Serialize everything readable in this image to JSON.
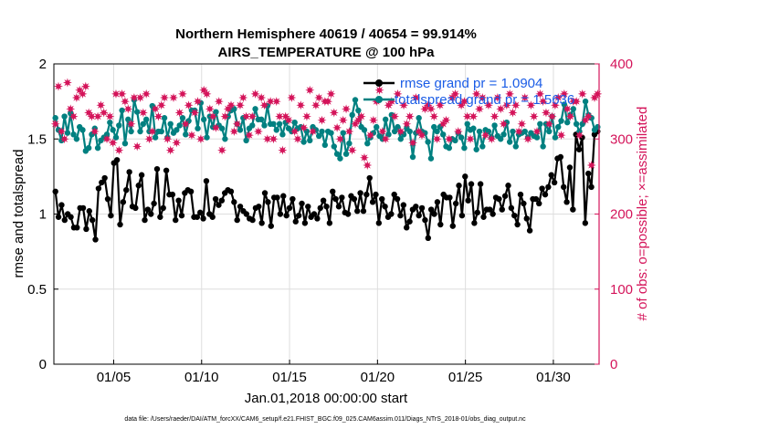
{
  "chart_data": {
    "type": "line",
    "title_line1": "Northern Hemisphere 40619 / 40654 = 99.914%",
    "title_line2": "AIRS_TEMPERATURE @ 100 hPa",
    "ylabel_left": "rmse and totalspread",
    "ylabel_right": "# of obs: o=possible; ×=assimilated",
    "xlabel": "Jan.01,2018 00:00:00 start",
    "footnote": "data file: /Users/raeder/DAI/ATM_forcXX/CAM6_setup/f.e21.FHIST_BGC.f09_025.CAM6assim.011/Diags_NTrS_2018-01/obs_diag_output.nc",
    "x_unit": "days since Jan.01,2018 00:00",
    "xlim": [
      0.6,
      31.6
    ],
    "ylim_left": [
      0,
      2
    ],
    "ylim_right": [
      0,
      400
    ],
    "left_ticks": [
      "0",
      "0.5",
      "1",
      "1.5",
      "2"
    ],
    "left_tick_values": [
      0,
      0.5,
      1,
      1.5,
      2
    ],
    "right_ticks": [
      "0",
      "100",
      "200",
      "300",
      "400"
    ],
    "right_tick_values": [
      0,
      100,
      200,
      300,
      400
    ],
    "x_ticks": [
      "01/05",
      "01/10",
      "01/15",
      "01/20",
      "01/25",
      "01/30"
    ],
    "x_tick_values": [
      4.0,
      9.0,
      14.0,
      19.0,
      24.0,
      29.0
    ],
    "grid": true,
    "legend_position": "top-right",
    "legend": [
      {
        "name": "rmse grand pr = 1.0904",
        "color": "#000000"
      },
      {
        "name": "totalspread grand pr = 1.5636",
        "color": "#008080"
      }
    ],
    "series": [
      {
        "name": "rmse",
        "axis": "left",
        "color": "#000000",
        "values": [
          1.15,
          0.98,
          1.06,
          0.96,
          1.0,
          0.98,
          0.91,
          0.91,
          1.04,
          1.04,
          0.9,
          1.02,
          0.96,
          0.83,
          1.17,
          1.21,
          1.24,
          1.1,
          0.99,
          1.34,
          1.36,
          0.93,
          1.08,
          1.16,
          1.28,
          1.05,
          1.04,
          1.19,
          1.26,
          0.96,
          1.03,
          1.0,
          1.07,
          1.3,
          0.98,
          1.04,
          1.29,
          1.13,
          1.13,
          0.96,
          1.09,
          0.99,
          1.14,
          1.16,
          1.15,
          0.98,
          0.98,
          1.01,
          0.97,
          1.22,
          1.0,
          0.98,
          1.1,
          1.06,
          1.09,
          1.14,
          1.16,
          1.15,
          1.08,
          0.96,
          1.05,
          1.02,
          1.0,
          0.97,
          0.96,
          1.04,
          1.05,
          0.94,
          1.14,
          1.08,
          0.92,
          1.11,
          1.11,
          1.0,
          1.12,
          0.99,
          1.04,
          1.1,
          0.95,
          0.99,
          1.07,
          0.94,
          1.05,
          0.98,
          1.0,
          0.97,
          1.04,
          1.09,
          1.05,
          0.94,
          1.15,
          1.1,
          1.05,
          1.11,
          1.01,
          1.0,
          1.12,
          1.1,
          1.02,
          1.14,
          1.02,
          1.13,
          1.24,
          1.08,
          1.13,
          0.94,
          1.1,
          1.05,
          0.98,
          1.0,
          1.13,
          1.1,
          0.99,
          1.06,
          0.91,
          0.95,
          1.03,
          1.05,
          0.99,
          1.04,
          0.96,
          0.84,
          1.03,
          1.0,
          1.08,
          0.93,
          1.13,
          1.11,
          1.11,
          0.92,
          1.07,
          1.19,
          0.99,
          1.25,
          1.09,
          1.2,
          0.94,
          1.01,
          1.2,
          0.98,
          1.03,
          1.03,
          1.0,
          1.11,
          1.1,
          1.03,
          1.12,
          1.19,
          1.04,
          0.99,
          0.93,
          1.13,
          1.07,
          0.97,
          0.89,
          1.1,
          1.1,
          1.07,
          1.17,
          1.13,
          1.18,
          1.26,
          1.21,
          1.37,
          1.38,
          1.18,
          1.08,
          1.31,
          1.03,
          1.53,
          1.43,
          1.51,
          0.94,
          1.27,
          1.18,
          1.53,
          1.55
        ]
      },
      {
        "name": "totalspread",
        "axis": "left",
        "color": "#008080",
        "values": [
          1.64,
          1.56,
          1.49,
          1.65,
          1.54,
          1.67,
          1.53,
          1.5,
          1.58,
          1.56,
          1.42,
          1.44,
          1.53,
          1.57,
          1.44,
          1.49,
          1.51,
          1.53,
          1.61,
          1.56,
          1.51,
          1.59,
          1.69,
          1.47,
          1.63,
          1.55,
          1.76,
          1.68,
          1.55,
          1.6,
          1.63,
          1.55,
          1.72,
          1.51,
          1.55,
          1.55,
          1.64,
          1.51,
          1.6,
          1.54,
          1.56,
          1.59,
          1.64,
          1.53,
          1.62,
          1.69,
          1.69,
          1.57,
          1.74,
          1.63,
          1.51,
          1.65,
          1.58,
          1.68,
          1.59,
          1.57,
          1.5,
          1.65,
          1.69,
          1.7,
          1.6,
          1.56,
          1.64,
          1.49,
          1.57,
          1.59,
          1.7,
          1.63,
          1.63,
          1.59,
          1.72,
          1.6,
          1.6,
          1.56,
          1.6,
          1.53,
          1.61,
          1.57,
          1.55,
          1.61,
          1.57,
          1.58,
          1.48,
          1.55,
          1.49,
          1.58,
          1.56,
          1.52,
          1.55,
          1.46,
          1.55,
          1.54,
          1.45,
          1.4,
          1.37,
          1.54,
          1.4,
          1.47,
          1.66,
          1.76,
          1.69,
          1.58,
          1.56,
          1.47,
          1.51,
          1.54,
          1.58,
          1.52,
          1.5,
          1.63,
          1.53,
          1.66,
          1.55,
          1.58,
          1.5,
          1.53,
          1.57,
          1.55,
          1.38,
          1.54,
          1.64,
          1.55,
          1.54,
          1.48,
          1.37,
          1.58,
          1.55,
          1.58,
          1.53,
          1.45,
          1.44,
          1.5,
          1.49,
          1.54,
          1.51,
          1.44,
          1.6,
          1.56,
          1.57,
          1.43,
          1.55,
          1.45,
          1.56,
          1.55,
          1.51,
          1.59,
          1.52,
          1.5,
          1.53,
          1.61,
          1.48,
          1.55,
          1.45,
          1.53,
          1.54,
          1.55,
          1.51,
          1.54,
          1.52,
          1.51,
          1.6,
          1.45,
          1.6,
          1.55,
          1.65,
          1.51,
          1.58,
          1.62,
          1.73,
          1.61,
          1.66,
          1.7,
          1.6,
          1.55,
          1.6,
          1.75,
          1.66,
          1.64,
          1.56,
          1.58
        ]
      },
      {
        "name": "# obs possible / assimilated",
        "axis": "right",
        "color": "#d4145a",
        "marker": "star",
        "values": [
          320,
          370,
          310,
          300,
          375,
          340,
          330,
          355,
          365,
          360,
          370,
          335,
          330,
          310,
          330,
          345,
          335,
          300,
          330,
          295,
          360,
          285,
          360,
          350,
          340,
          320,
          355,
          290,
          355,
          335,
          360,
          300,
          310,
          340,
          330,
          345,
          355,
          300,
          285,
          355,
          295,
          335,
          360,
          320,
          345,
          305,
          335,
          350,
          300,
          365,
          360,
          340,
          330,
          315,
          350,
          285,
          330,
          340,
          345,
          310,
          320,
          345,
          355,
          330,
          305,
          330,
          360,
          310,
          355,
          345,
          300,
          350,
          300,
          350,
          330,
          285,
          330,
          325,
          355,
          310,
          300,
          345,
          315,
          330,
          365,
          310,
          345,
          355,
          325,
          350,
          350,
          360,
          335,
          315,
          300,
          325,
          340,
          310,
          285,
          320,
          325,
          330,
          275,
          265,
          305,
          325,
          350,
          365,
          310,
          300,
          345,
          350,
          330,
          360,
          310,
          345,
          320,
          330,
          295,
          355,
          310,
          305,
          340,
          345,
          340,
          330,
          300,
          345,
          320,
          325,
          300,
          355,
          360,
          310,
          345,
          350,
          330,
          300,
          330,
          360,
          340,
          355,
          305,
          345,
          300,
          330,
          355,
          340,
          320,
          345,
          360,
          335,
          345,
          310,
          320,
          355,
          300,
          345,
          330,
          310,
          360,
          350,
          335,
          320,
          330,
          345,
          355,
          305,
          360,
          340,
          330,
          350,
          350,
          305,
          360,
          325,
          330,
          265,
          355,
          360
        ]
      }
    ]
  }
}
